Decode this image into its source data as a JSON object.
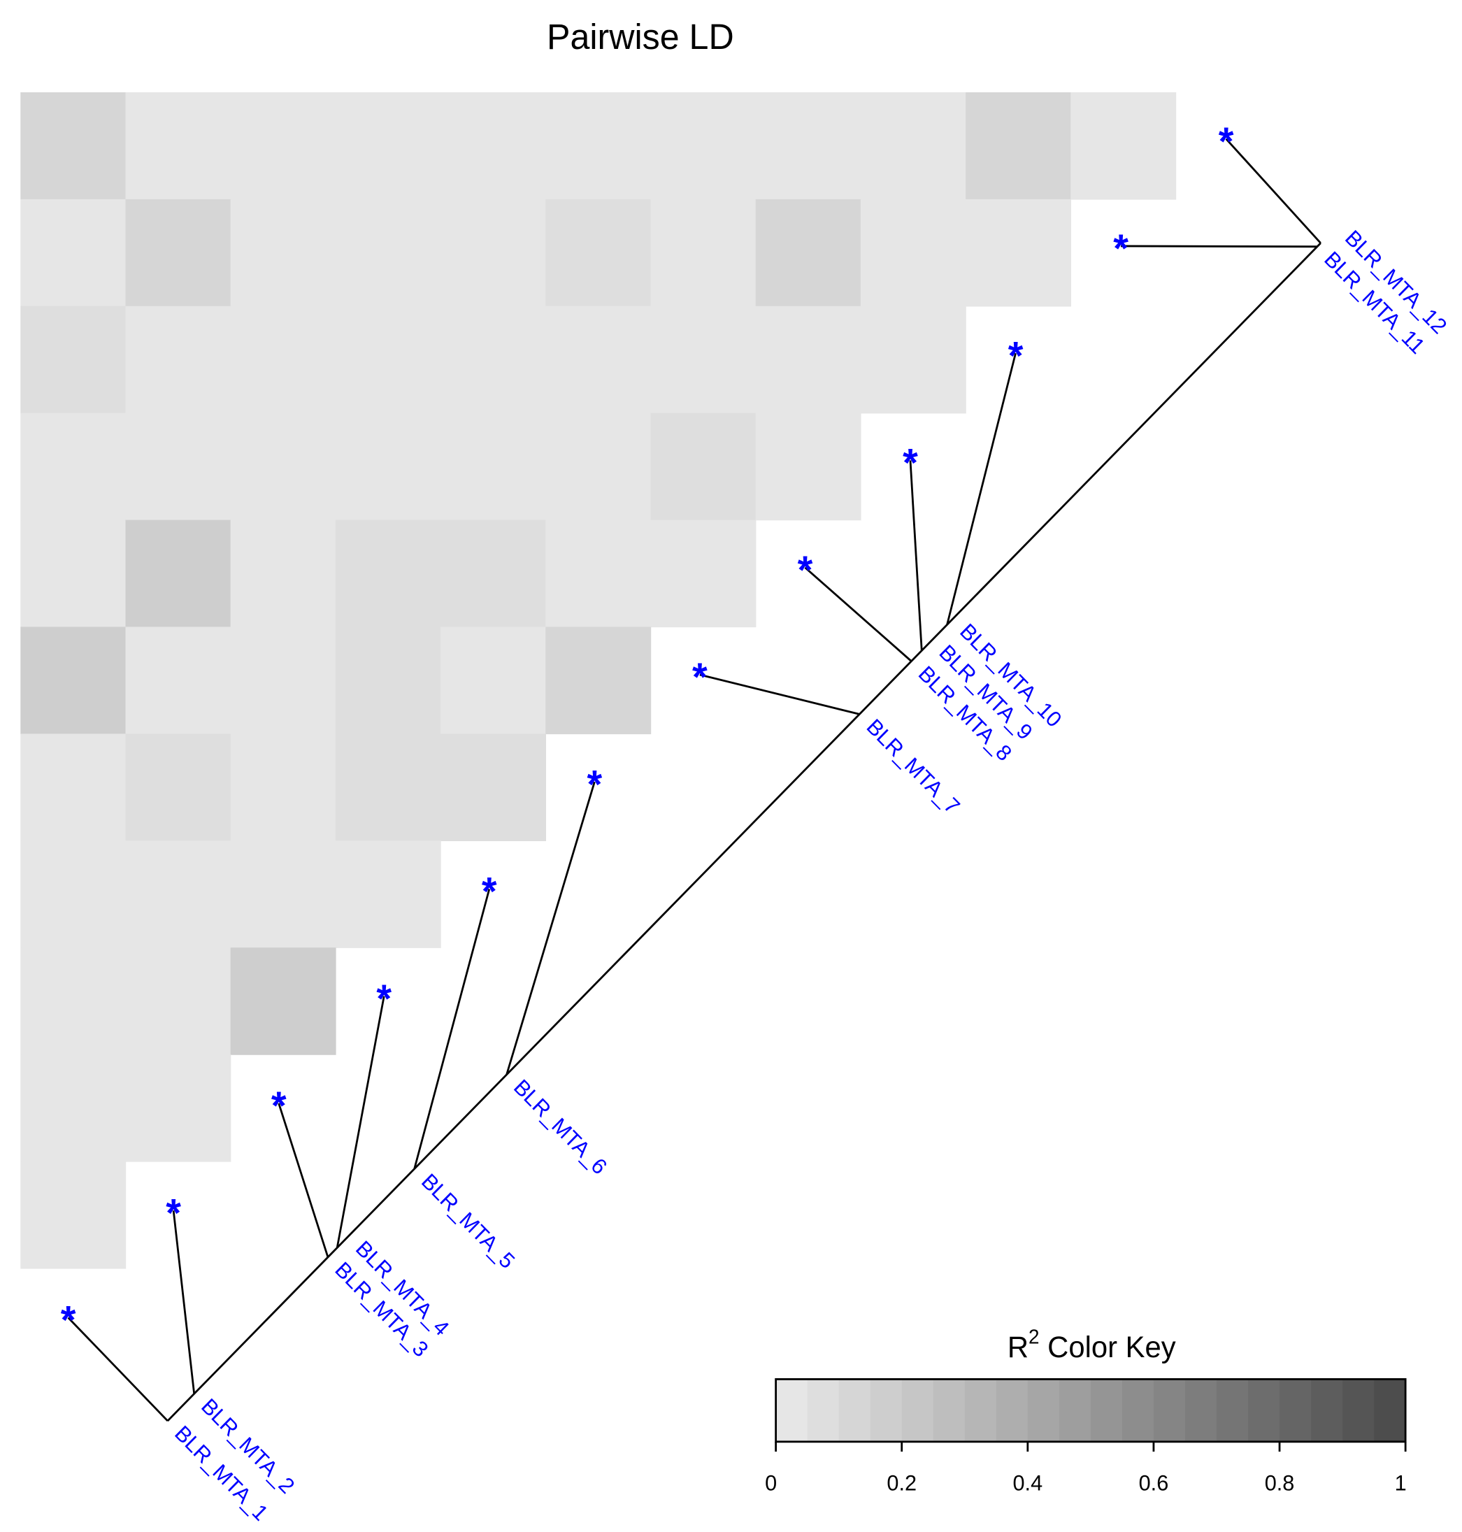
{
  "chart_data": {
    "type": "ld_heatmap",
    "title": "Pairwise LD",
    "markers": [
      "BLR_MTA_1",
      "BLR_MTA_2",
      "BLR_MTA_3",
      "BLR_MTA_4",
      "BLR_MTA_5",
      "BLR_MTA_6",
      "BLR_MTA_7",
      "BLR_MTA_8",
      "BLR_MTA_9",
      "BLR_MTA_10",
      "BLR_MTA_11",
      "BLR_MTA_12"
    ],
    "positions": [
      0,
      0.023,
      0.139,
      0.147,
      0.214,
      0.294,
      0.6,
      0.645,
      0.654,
      0.676,
      0.997,
      1
    ],
    "values": [
      [
        0.12,
        0.02,
        0.02,
        0.02,
        0.02,
        0.02,
        0.02,
        0.02,
        0.02,
        0.12,
        0.01
      ],
      [
        0.02,
        0.1,
        0.02,
        0.02,
        0.02,
        0.06,
        0.02,
        0.1,
        0.02,
        0.02
      ],
      [
        0.06,
        0.02,
        0.02,
        0.02,
        0.02,
        0.02,
        0.02,
        0.02,
        0.02
      ],
      [
        0.04,
        0.02,
        0.02,
        0.02,
        0.02,
        0.02,
        0.06,
        0.03
      ],
      [
        0.02,
        0.16,
        0.02,
        0.08,
        0.06,
        0.04,
        0.02
      ],
      [
        0.16,
        0.02,
        0.02,
        0.06,
        0.02,
        0.1
      ],
      [
        0.02,
        0.06,
        0.02,
        0.06,
        0.06
      ],
      [
        0.02,
        0.02,
        0.02,
        0.02
      ],
      [
        0.02,
        0.02,
        0.18
      ],
      [
        0.02,
        0.02
      ],
      [
        0.02
      ]
    ],
    "marker_color": "#0000ff",
    "star": "*",
    "key_title": {
      "base": "R",
      "sup": "2",
      "rest": " Color Key"
    },
    "key_bins": 20,
    "color_low": "#e6e6e6",
    "color_high": "#4d4d4d",
    "xlim": [
      0,
      1
    ],
    "xticks": [
      0,
      0.2,
      0.4,
      0.6,
      0.8,
      1
    ]
  }
}
